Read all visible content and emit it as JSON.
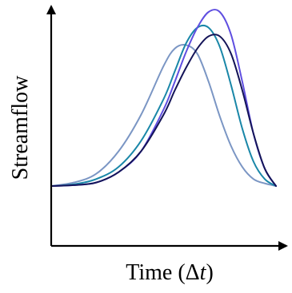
{
  "chart_data": {
    "type": "line",
    "title": "",
    "xlabel": "Time (Δt)",
    "xlabel_parts": {
      "prefix": "Time (Δ",
      "italic": "t",
      "suffix": ")"
    },
    "ylabel": "Streamflow",
    "xlim": [
      0,
      100
    ],
    "ylim": [
      0,
      100
    ],
    "grid": false,
    "legend": "none",
    "ticks": "none",
    "series": [
      {
        "color": "#7b96c4",
        "x": [
          0,
          10,
          20,
          30,
          40,
          50,
          55,
          60,
          65,
          70,
          75,
          80,
          85,
          90,
          95,
          100
        ],
        "y": [
          0,
          2,
          7,
          20,
          41,
          69,
          79,
          81,
          76,
          60,
          40,
          23,
          11,
          4,
          1.5,
          0
        ]
      },
      {
        "color": "#1a87a8",
        "x": [
          0,
          10,
          20,
          30,
          40,
          50,
          55,
          60,
          65,
          70,
          75,
          80,
          85,
          90,
          95,
          100
        ],
        "y": [
          0,
          1,
          4,
          11,
          26,
          50,
          66,
          82,
          91,
          91,
          80,
          58,
          33,
          14,
          4,
          0
        ]
      },
      {
        "color": "#5f4ee0",
        "x": [
          0,
          10,
          20,
          30,
          40,
          50,
          55,
          60,
          65,
          70,
          75,
          80,
          85,
          90,
          95,
          100
        ],
        "y": [
          0,
          0.5,
          2,
          8,
          20,
          44,
          60,
          77,
          91,
          100,
          100,
          87,
          60,
          30,
          10,
          0
        ]
      },
      {
        "color": "#141458",
        "x": [
          0,
          10,
          20,
          30,
          40,
          50,
          55,
          60,
          65,
          70,
          75,
          80,
          85,
          90,
          95,
          100
        ],
        "y": [
          0,
          0.5,
          2,
          8,
          20,
          41,
          55,
          68,
          79,
          86,
          86,
          76,
          55,
          30,
          10,
          0
        ]
      }
    ]
  }
}
